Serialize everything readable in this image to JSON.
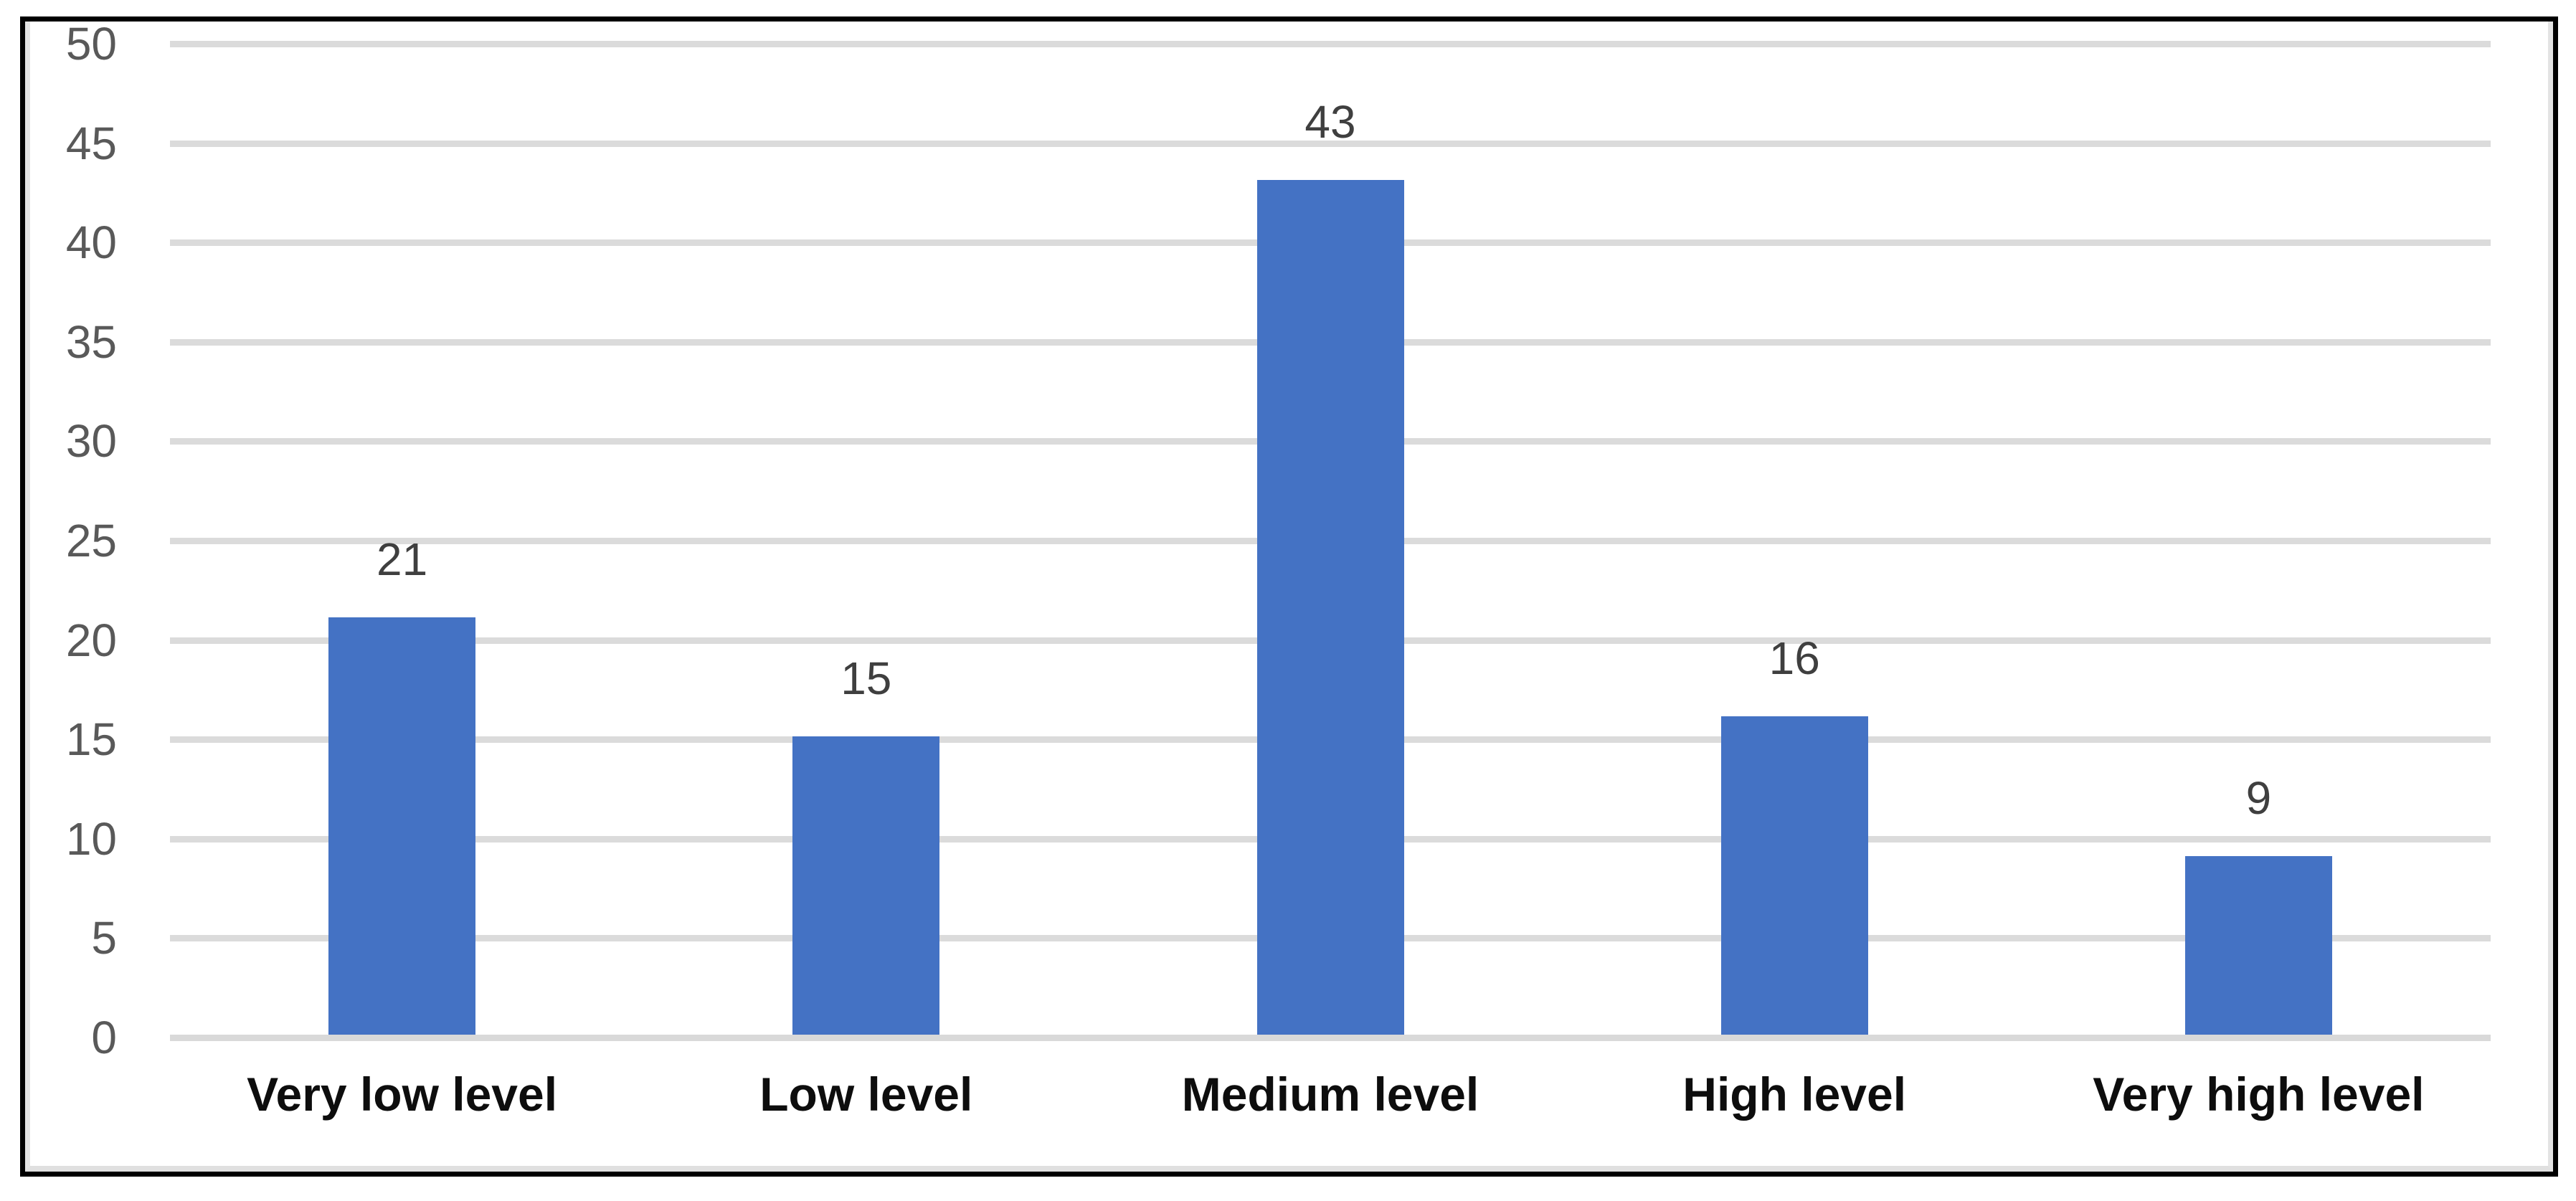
{
  "figure": {
    "title": "",
    "frame_border_color": "#000000",
    "frame_inner_edge_color": "#e3e3e3",
    "background_color": "#ffffff"
  },
  "chart_data": {
    "type": "bar",
    "categories": [
      "Very low level",
      "Low level",
      "Medium level",
      "High level",
      "Very high level"
    ],
    "values": [
      21,
      15,
      43,
      16,
      9
    ],
    "data_labels": [
      "21",
      "15",
      "43",
      "16",
      "9"
    ],
    "title": "",
    "xlabel": "",
    "ylabel": "",
    "ylim": [
      0,
      50
    ],
    "ytick_step": 5,
    "ytick_labels": [
      "0",
      "5",
      "10",
      "15",
      "20",
      "25",
      "30",
      "35",
      "40",
      "45",
      "50"
    ],
    "grid": true,
    "legend_position": "none",
    "bar_color": "#4472C4",
    "gridline_color": "#DBDBDB",
    "axis_line_color": "#D9D9D9",
    "ytick_label_color": "#595959",
    "data_label_color": "#3F3F3F",
    "category_label_color": "#0D0D0D"
  }
}
